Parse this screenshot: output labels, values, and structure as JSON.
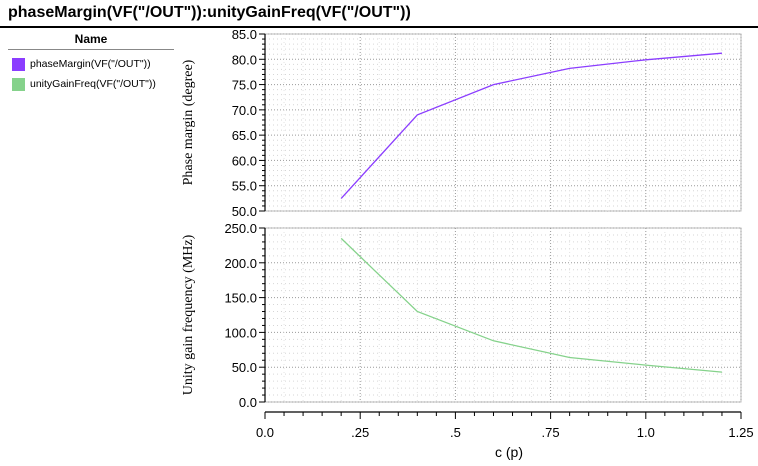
{
  "title": "phaseMargin(VF(\"/OUT\")):unityGainFreq(VF(\"/OUT\"))",
  "legend": {
    "header": "Name",
    "items": [
      {
        "label": "phaseMargin(VF(\"/OUT\"))",
        "color": "#8b3dff"
      },
      {
        "label": "unityGainFreq(VF(\"/OUT\"))",
        "color": "#85d28b"
      }
    ]
  },
  "chart_data": [
    {
      "type": "line",
      "ylabel": "Phase margin (degree)",
      "ylim": [
        50,
        85
      ],
      "yticks": [
        "50.0",
        "55.0",
        "60.0",
        "65.0",
        "70.0",
        "75.0",
        "80.0",
        "85.0"
      ],
      "xlim": [
        0,
        1.25
      ],
      "grid": true,
      "series": [
        {
          "name": "phaseMargin(VF(\"/OUT\"))",
          "color": "#8b3dff",
          "x": [
            0.2,
            0.4,
            0.6,
            0.8,
            1.0,
            1.2
          ],
          "y": [
            52.5,
            69.0,
            75.0,
            78.2,
            79.9,
            81.2
          ]
        }
      ]
    },
    {
      "type": "line",
      "ylabel": "Unity gain frequency (MHz)",
      "ylim": [
        0,
        250
      ],
      "yticks": [
        "0.0",
        "50.0",
        "100.0",
        "150.0",
        "200.0",
        "250.0"
      ],
      "xlim": [
        0,
        1.25
      ],
      "xlabel": "c (p)",
      "xticks": [
        "0.0",
        ".25",
        ".5",
        ".75",
        "1.0",
        "1.25"
      ],
      "grid": true,
      "series": [
        {
          "name": "unityGainFreq(VF(\"/OUT\"))",
          "color": "#85d28b",
          "x": [
            0.2,
            0.4,
            0.6,
            0.8,
            1.0,
            1.2
          ],
          "y": [
            235,
            130,
            88,
            64,
            53,
            43
          ]
        }
      ]
    }
  ]
}
